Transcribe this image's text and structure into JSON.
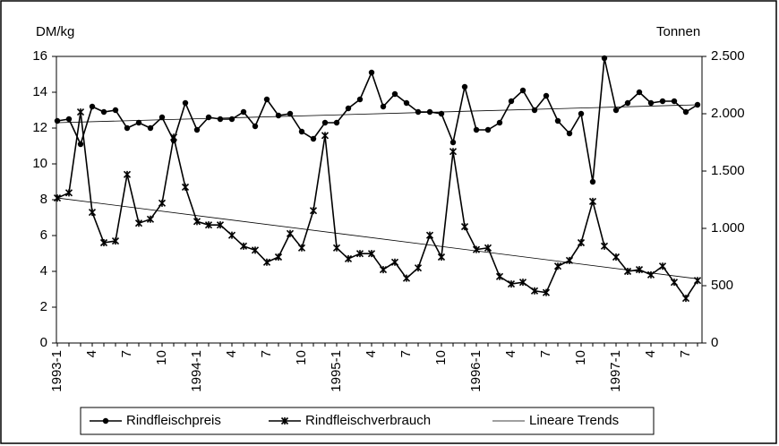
{
  "chart_data": {
    "type": "line",
    "y_label": "DM/kg",
    "y2_label": "Tonnen",
    "categories": [
      "1993-1",
      null,
      null,
      "4",
      null,
      null,
      "7",
      null,
      null,
      "10",
      null,
      null,
      "1994-1",
      null,
      null,
      "4",
      null,
      null,
      "7",
      null,
      null,
      "10",
      null,
      null,
      "1995-1",
      null,
      null,
      "4",
      null,
      null,
      "7",
      null,
      null,
      "10",
      null,
      null,
      "1996-1",
      null,
      null,
      "4",
      null,
      null,
      "7",
      null,
      null,
      "10",
      null,
      null,
      "1997-1",
      null,
      null,
      "4",
      null,
      null,
      "7",
      null
    ],
    "ylim": [
      0,
      16
    ],
    "yticks": [
      0,
      2,
      4,
      6,
      8,
      10,
      12,
      14,
      16
    ],
    "y2lim": [
      0,
      2500
    ],
    "y2ticks": [
      0,
      500,
      {
        "value": 1000,
        "label": "1.000"
      },
      {
        "value": 1500,
        "label": "1.500"
      },
      {
        "value": 2000,
        "label": "2.000"
      },
      {
        "value": 2500,
        "label": "2.500"
      }
    ],
    "series": [
      {
        "name": "Rindfleischpreis",
        "color": "#000000",
        "marker": "circle",
        "axis": "y",
        "values": [
          12.4,
          12.5,
          11.1,
          13.2,
          12.9,
          13.0,
          12.0,
          12.3,
          12.0,
          12.6,
          11.3,
          13.4,
          11.9,
          12.6,
          12.5,
          12.5,
          12.9,
          12.1,
          13.6,
          12.7,
          12.8,
          11.8,
          11.4,
          12.3,
          12.3,
          13.1,
          13.6,
          15.1,
          13.2,
          13.9,
          13.4,
          12.9,
          12.9,
          12.8,
          11.2,
          14.3,
          11.9,
          11.9,
          12.3,
          13.5,
          14.1,
          13.0,
          13.8,
          12.4,
          11.7,
          12.8,
          9.0,
          15.9,
          13.0,
          13.4,
          14.0,
          13.4,
          13.5,
          13.5,
          12.9,
          13.3
        ]
      },
      {
        "name": "Rindfleischverbrauch",
        "color": "#000000",
        "marker": "x",
        "axis": "y2",
        "values": [
          1265,
          1310,
          2015,
          1140,
          875,
          890,
          1470,
          1045,
          1080,
          1220,
          1795,
          1360,
          1060,
          1030,
          1030,
          940,
          845,
          810,
          705,
          750,
          955,
          830,
          1155,
          1810,
          830,
          735,
          780,
          780,
          640,
          705,
          565,
          655,
          940,
          750,
          1670,
          1015,
          815,
          830,
          580,
          515,
          530,
          455,
          440,
          670,
          720,
          875,
          1235,
          845,
          750,
          625,
          640,
          595,
          670,
          530,
          390,
          545
        ]
      }
    ],
    "trend": {
      "name": "Lineare Trends",
      "color": "#000000",
      "lines": [
        {
          "axis": "y",
          "from": 12.3,
          "to": 13.3
        },
        {
          "axis": "y2",
          "from": 1265,
          "to": 560
        }
      ]
    }
  }
}
